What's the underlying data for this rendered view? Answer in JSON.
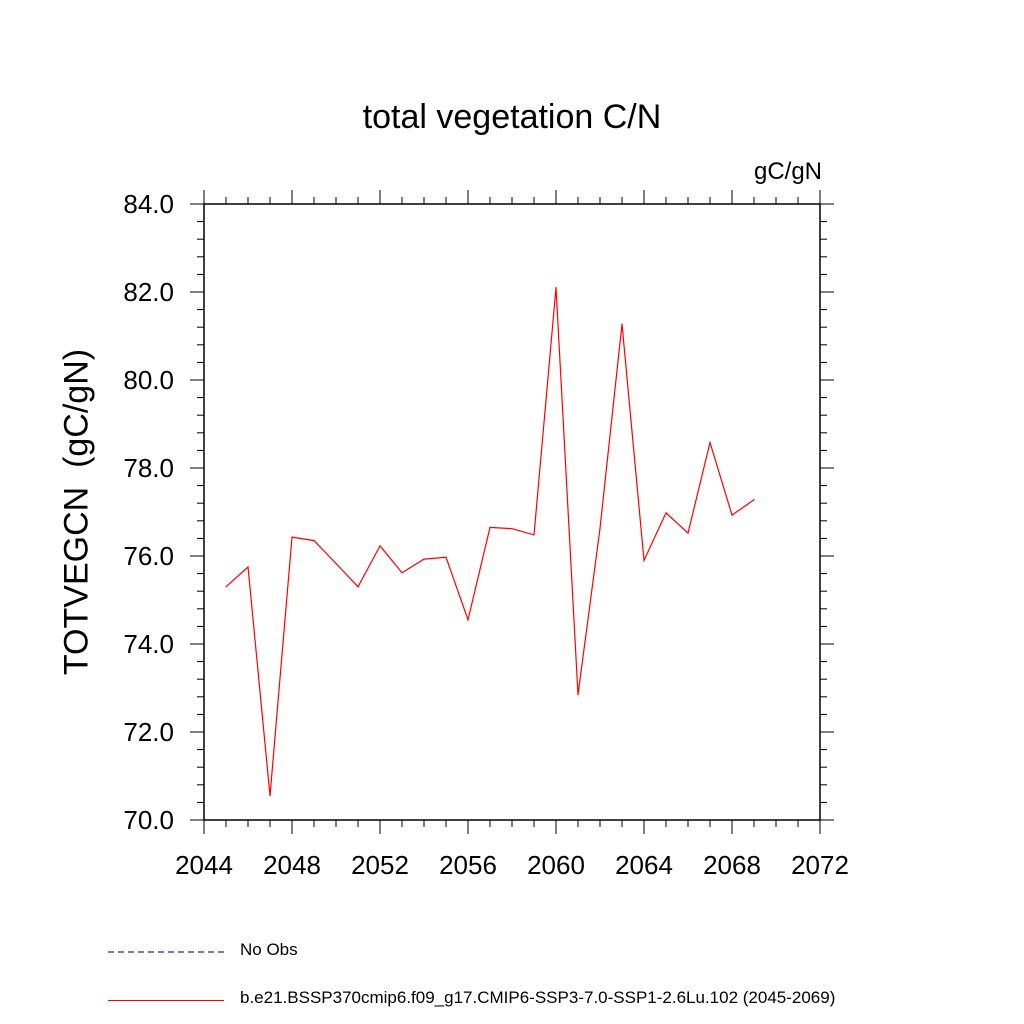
{
  "chart_data": {
    "type": "line",
    "title": "total vegetation C/N",
    "units_label": "gC/gN",
    "ylabel": "TOTVEGCN  (gC/gN)",
    "xlabel": "",
    "xlim": [
      2044,
      2072
    ],
    "ylim": [
      70.0,
      84.0
    ],
    "x_ticks": [
      "2044",
      "2048",
      "2052",
      "2056",
      "2060",
      "2064",
      "2068",
      "2072"
    ],
    "y_ticks": [
      "70.0",
      "72.0",
      "74.0",
      "76.0",
      "78.0",
      "80.0",
      "82.0",
      "84.0"
    ],
    "grid": false,
    "series": [
      {
        "name": "b.e21.BSSP370cmip6.f09_g17.CMIP6-SSP3-7.0-SSP1-2.6Lu.102 (2045-2069)",
        "color": "#ff0000",
        "x": [
          2045,
          2046,
          2047,
          2048,
          2049,
          2050,
          2051,
          2052,
          2053,
          2054,
          2055,
          2056,
          2057,
          2058,
          2059,
          2060,
          2061,
          2062,
          2063,
          2064,
          2065,
          2066,
          2067,
          2068,
          2069
        ],
        "y": [
          75.3,
          75.75,
          70.55,
          76.43,
          76.35,
          75.83,
          75.3,
          76.23,
          75.62,
          75.93,
          75.97,
          74.55,
          76.65,
          76.62,
          76.48,
          82.1,
          72.85,
          76.63,
          81.27,
          75.9,
          76.98,
          76.52,
          78.58,
          76.93,
          77.28
        ]
      }
    ],
    "legend": [
      {
        "label": "No Obs",
        "color": "#7777cc",
        "style": "dashed"
      },
      {
        "label": "b.e21.BSSP370cmip6.f09_g17.CMIP6-SSP3-7.0-SSP1-2.6Lu.102 (2045-2069)",
        "color": "#ff0000",
        "style": "solid"
      }
    ]
  }
}
